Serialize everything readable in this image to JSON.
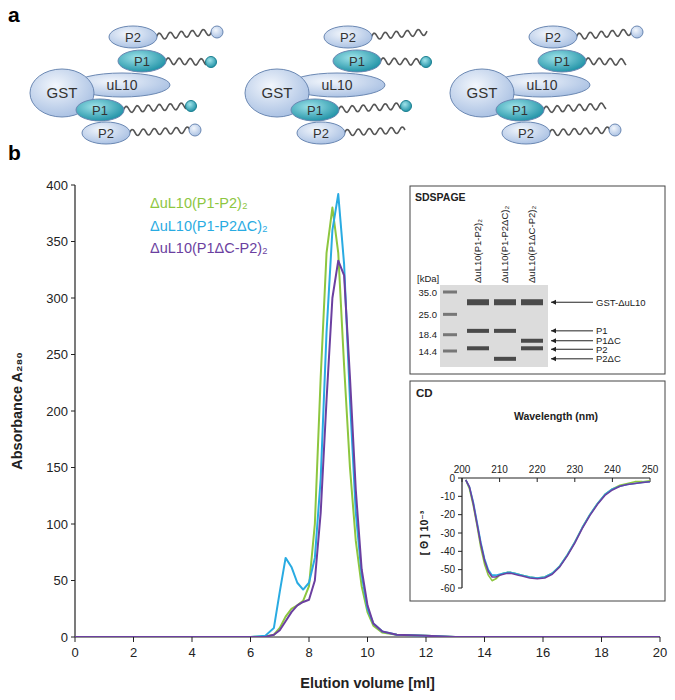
{
  "panel_labels": [
    "a",
    "b"
  ],
  "diagram": {
    "complexes": [
      {
        "gst": "GST",
        "core": "uL10",
        "stalks": [
          {
            "p1": "P1",
            "p2": "P2"
          },
          {
            "p1": "P1",
            "p2": "P2"
          }
        ]
      },
      {
        "gst": "GST",
        "core": "uL10",
        "stalks": [
          {
            "p1": "P1",
            "p2": "P2"
          },
          {
            "p1": "P1",
            "p2": "P2"
          }
        ]
      },
      {
        "gst": "GST",
        "core": "uL10",
        "stalks": [
          {
            "p1": "P1",
            "p2": "P2"
          },
          {
            "p1": "P1",
            "p2": "P2"
          }
        ]
      }
    ]
  },
  "chart_data": [
    {
      "type": "line",
      "x_label": "Elution volume [ml]",
      "y_label": "Absorbance A₂₈₀",
      "legend": "upper left",
      "x": [
        0,
        1,
        2,
        3,
        4,
        5,
        6,
        6.5,
        6.8,
        7,
        7.2,
        7.4,
        7.6,
        7.8,
        8,
        8.2,
        8.4,
        8.6,
        8.8,
        9,
        9.2,
        9.4,
        9.6,
        9.8,
        10,
        10.2,
        10.5,
        11,
        12,
        13,
        14,
        15,
        16,
        17,
        18,
        19,
        20
      ],
      "xlim": [
        0,
        20
      ],
      "xticks": [
        0,
        2,
        4,
        6,
        8,
        10,
        12,
        14,
        16,
        18,
        20
      ],
      "ylim": [
        0,
        400
      ],
      "yticks": [
        0,
        50,
        100,
        150,
        200,
        250,
        300,
        350,
        400
      ],
      "series": [
        {
          "name": "ΔuL10(P1-P2)₂",
          "color": "#8dc63f",
          "values": [
            0,
            0,
            0,
            0,
            0,
            0,
            0,
            0.5,
            2,
            8,
            18,
            25,
            28,
            32,
            45,
            100,
            230,
            340,
            380,
            340,
            240,
            150,
            85,
            45,
            22,
            10,
            4,
            2,
            1,
            0,
            0,
            0,
            0,
            0,
            0,
            0,
            0
          ]
        },
        {
          "name": "ΔuL10(P1-P2ΔC)₂",
          "color": "#29abe2",
          "values": [
            0,
            0,
            0,
            0,
            0,
            0,
            0,
            1,
            8,
            40,
            70,
            62,
            48,
            42,
            48,
            70,
            140,
            270,
            360,
            392,
            330,
            210,
            110,
            55,
            25,
            12,
            5,
            2,
            1,
            0,
            0,
            0,
            0,
            0,
            0,
            0,
            0
          ]
        },
        {
          "name": "ΔuL10(P1ΔC-P2)₂",
          "color": "#6b3fa0",
          "values": [
            0,
            0,
            0,
            0,
            0,
            0,
            0,
            0,
            2,
            6,
            14,
            22,
            28,
            31,
            33,
            50,
            110,
            210,
            300,
            333,
            320,
            230,
            130,
            60,
            28,
            12,
            5,
            2,
            1,
            0,
            0,
            0,
            0,
            0,
            0,
            0,
            0
          ]
        }
      ]
    },
    {
      "type": "line",
      "title": "CD",
      "x_label": "Wavelength (nm)",
      "y_label": "[ Θ ] 10⁻³",
      "x": [
        201,
        202,
        203,
        204,
        205,
        206,
        207,
        208,
        209,
        210,
        211,
        212,
        213,
        214,
        215,
        216,
        218,
        220,
        222,
        224,
        226,
        228,
        230,
        232,
        234,
        236,
        238,
        240,
        242,
        244,
        246,
        248,
        250
      ],
      "xlim": [
        200,
        250
      ],
      "xticks": [
        200,
        210,
        220,
        230,
        240,
        250
      ],
      "ylim": [
        -60,
        0
      ],
      "yticks": [
        0,
        -10,
        -20,
        -30,
        -40,
        -50,
        -60
      ],
      "series": [
        {
          "color": "#8dc63f",
          "values": [
            -1,
            -6,
            -15,
            -26,
            -38,
            -47,
            -53,
            -56,
            -55,
            -53,
            -52,
            -51.5,
            -51.5,
            -52,
            -52.5,
            -53,
            -54,
            -54.5,
            -54,
            -52,
            -48,
            -42,
            -35,
            -27,
            -20,
            -14,
            -9,
            -6,
            -4,
            -3,
            -2,
            -2,
            -1.5
          ]
        },
        {
          "color": "#29abe2",
          "values": [
            -1,
            -5,
            -13,
            -24,
            -35,
            -44,
            -50,
            -53,
            -53,
            -52.5,
            -52,
            -51.5,
            -51.5,
            -52,
            -52.5,
            -53,
            -54,
            -54.5,
            -54,
            -52,
            -48,
            -42,
            -35,
            -27,
            -20,
            -14,
            -9,
            -6,
            -4.5,
            -3.5,
            -3,
            -2.5,
            -2
          ]
        },
        {
          "color": "#6b3fa0",
          "values": [
            -1,
            -5,
            -14,
            -25,
            -36,
            -45,
            -51,
            -54,
            -54,
            -53,
            -52.5,
            -52,
            -52,
            -52.5,
            -53,
            -53.5,
            -54.5,
            -55,
            -54.5,
            -52.5,
            -48.5,
            -42.5,
            -35.5,
            -27.5,
            -20.5,
            -14.5,
            -9.5,
            -6.5,
            -4.5,
            -3.5,
            -3,
            -2.5,
            -2
          ]
        }
      ]
    }
  ],
  "gel": {
    "title": "SDSPAGE",
    "unit": "[kDa]",
    "lanes": [
      "ΔuL10(P1-P2)₂",
      "ΔuL10(P1-P2ΔC)₂",
      "ΔuL10(P1ΔC-P2)₂"
    ],
    "markers": [
      {
        "value": 35,
        "label": "35.0"
      },
      {
        "value": 25,
        "label": "25.0"
      },
      {
        "value": 18.4,
        "label": "18.4"
      },
      {
        "value": 14.4,
        "label": "14.4"
      }
    ],
    "bands": [
      {
        "label": "GST-ΔuL10",
        "kda": 30,
        "in_lanes": [
          true,
          true,
          true
        ]
      },
      {
        "label": "P1",
        "kda": 19.5,
        "in_lanes": [
          true,
          true,
          false
        ]
      },
      {
        "label": "P1ΔC",
        "kda": 16.8,
        "in_lanes": [
          false,
          false,
          true
        ]
      },
      {
        "label": "P2",
        "kda": 15,
        "in_lanes": [
          true,
          false,
          true
        ]
      },
      {
        "label": "P2ΔC",
        "kda": 12.8,
        "in_lanes": [
          false,
          true,
          false
        ]
      }
    ]
  }
}
